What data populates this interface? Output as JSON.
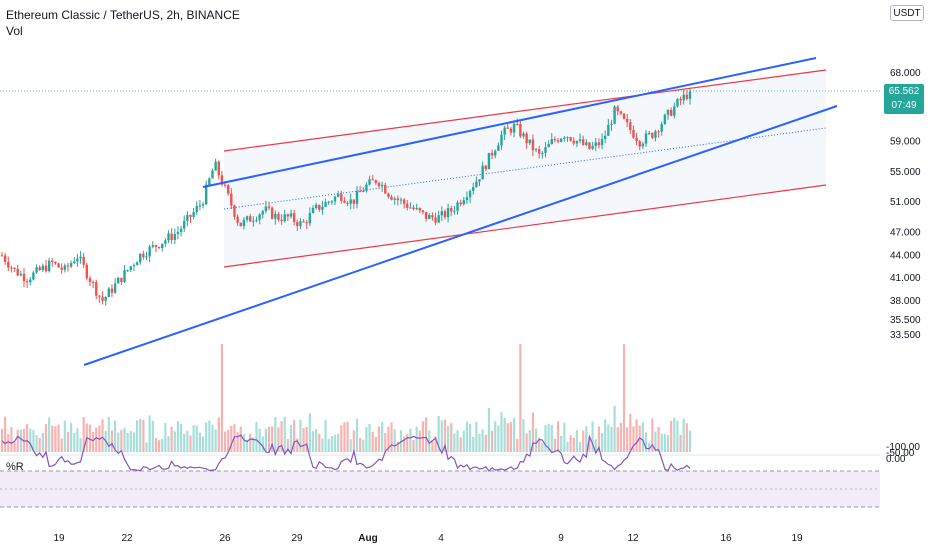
{
  "header": {
    "title": "Ethereum Classic / TetherUS, 2h, BINANCE",
    "volume_label": "Vol",
    "indicator_label": "%R",
    "currency": "USDT"
  },
  "last_price": {
    "value": "65.562",
    "countdown": "07:49",
    "color": "#26a69a"
  },
  "colors": {
    "up": "#26a69a",
    "down": "#ef5350",
    "trendline": "#2962ff",
    "channel": "#f23645",
    "wr_line": "#7e57c2"
  },
  "price_axis": {
    "labels": [
      "68.000",
      "59.000",
      "55.000",
      "51.000",
      "47.000",
      "44.000",
      "41.000",
      "38.000",
      "35.500",
      "33.500"
    ],
    "values": [
      68,
      59,
      55,
      51,
      47,
      44,
      41,
      38,
      35.5,
      33.5
    ]
  },
  "wr_axis": {
    "labels": [
      "0.00",
      "-50.00",
      "-100.00"
    ],
    "values": [
      0,
      -50,
      -100
    ]
  },
  "time_axis": {
    "labels": [
      "19",
      "22",
      "26",
      "29",
      "Aug",
      "4",
      "9",
      "12",
      "16",
      "19"
    ]
  },
  "chart_data": {
    "type": "candlestick",
    "symbol": "Ethereum Classic / TetherUS",
    "interval": "2h",
    "exchange": "BINANCE",
    "ylim": [
      32,
      72
    ],
    "last": 65.562,
    "approx_closes": [
      44,
      42,
      41,
      42,
      43,
      42,
      44,
      41,
      38,
      40,
      42,
      44,
      45,
      46,
      47,
      49,
      51,
      56,
      52,
      48,
      49,
      50,
      49,
      49,
      48,
      50,
      51,
      52,
      51,
      53,
      54,
      52,
      51,
      50,
      49,
      49,
      50,
      52,
      54,
      57,
      60,
      61,
      59,
      57,
      59,
      60,
      59,
      58,
      59,
      63,
      61,
      59,
      60,
      62,
      64,
      65.562
    ],
    "indicators": [
      "Vol",
      "%R"
    ]
  }
}
